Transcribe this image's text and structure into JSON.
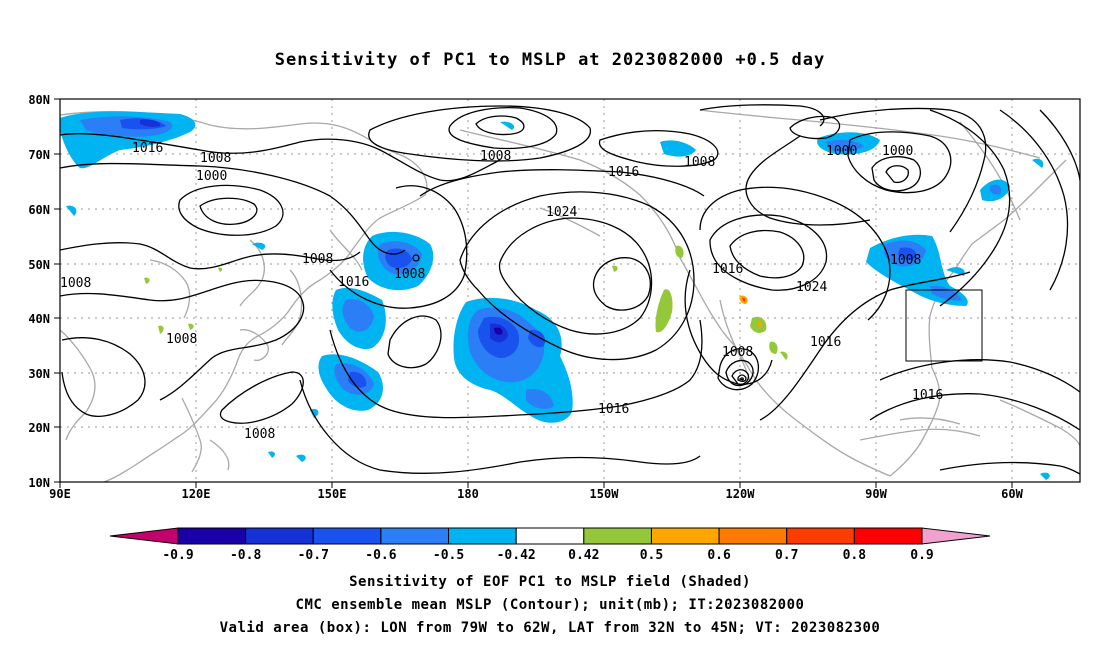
{
  "title": "Sensitivity of PC1 to MSLP at 2023082000 +0.5 day",
  "lat_labels": [
    "80N",
    "70N",
    "60N",
    "50N",
    "40N",
    "30N",
    "20N",
    "10N"
  ],
  "lon_labels": [
    "90E",
    "120E",
    "150E",
    "180",
    "150W",
    "120W",
    "90W",
    "60W"
  ],
  "contour_labels": [
    "1016",
    "1008",
    "1000",
    "1008",
    "1016",
    "1024",
    "1008",
    "1000",
    "1000",
    "1008",
    "1008",
    "1008",
    "1016",
    "1008",
    "1008",
    "1016",
    "1024",
    "1008",
    "1016",
    "1008",
    "1016",
    "1016",
    "1008"
  ],
  "colorbar": {
    "tick_labels": [
      "-0.9",
      "-0.8",
      "-0.7",
      "-0.6",
      "-0.5",
      "-0.42",
      "0.42",
      "0.5",
      "0.6",
      "0.7",
      "0.8",
      "0.9"
    ],
    "colors": [
      "#c4006c",
      "#1a00a8",
      "#1532d6",
      "#1a52f0",
      "#2b7ef5",
      "#00b4f2",
      "#ffffff",
      "#94c83a",
      "#ffa500",
      "#ff7a00",
      "#ff3c00",
      "#ff0000",
      "#f2a0d0"
    ]
  },
  "caption": {
    "line1": "Sensitivity of EOF PC1 to MSLP field (Shaded)",
    "line2": "CMC ensemble mean MSLP (Contour); unit(mb); IT:2023082000",
    "line3": "Valid area (box): LON from 79W to 62W, LAT from 32N to 45N; VT: 2023082300"
  }
}
